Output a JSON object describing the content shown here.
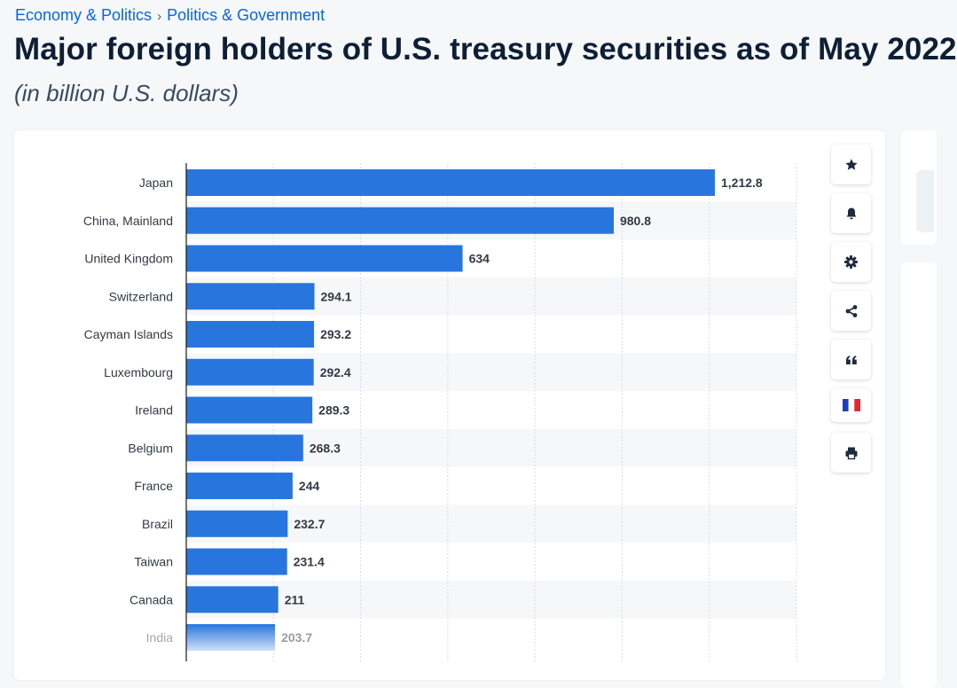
{
  "breadcrumb": {
    "items": [
      "Economy & Politics",
      "Politics & Government"
    ],
    "separator": "›"
  },
  "title": "Major foreign holders of U.S. treasury securities as of May 2022",
  "subtitle": "(in billion U.S. dollars)",
  "toolbar": {
    "buttons": [
      "star-icon",
      "bell-icon",
      "gear-icon",
      "share-icon",
      "quote-icon",
      "flag-fr-icon",
      "print-icon"
    ]
  },
  "colors": {
    "bar": "#2876dd",
    "bar_fade": "#cfe0f7",
    "accent": "#0666e5"
  },
  "chart_data": {
    "type": "bar",
    "orientation": "horizontal",
    "title": "Major foreign holders of U.S. treasury securities as of May 2022",
    "subtitle": "(in billion U.S. dollars)",
    "categories": [
      "Japan",
      "China, Mainland",
      "United Kingdom",
      "Switzerland",
      "Cayman Islands",
      "Luxembourg",
      "Ireland",
      "Belgium",
      "France",
      "Brazil",
      "Taiwan",
      "Canada",
      "India"
    ],
    "values": [
      1212.8,
      980.8,
      634,
      294.1,
      293.2,
      292.4,
      289.3,
      268.3,
      244,
      232.7,
      231.4,
      211,
      203.7
    ],
    "value_labels": [
      "1,212.8",
      "980.8",
      "634",
      "294.1",
      "293.2",
      "292.4",
      "289.3",
      "268.3",
      "244",
      "232.7",
      "231.4",
      "211",
      "203.7"
    ],
    "xlim": [
      0,
      1400
    ],
    "grid": true,
    "xlabel": "",
    "ylabel": ""
  }
}
